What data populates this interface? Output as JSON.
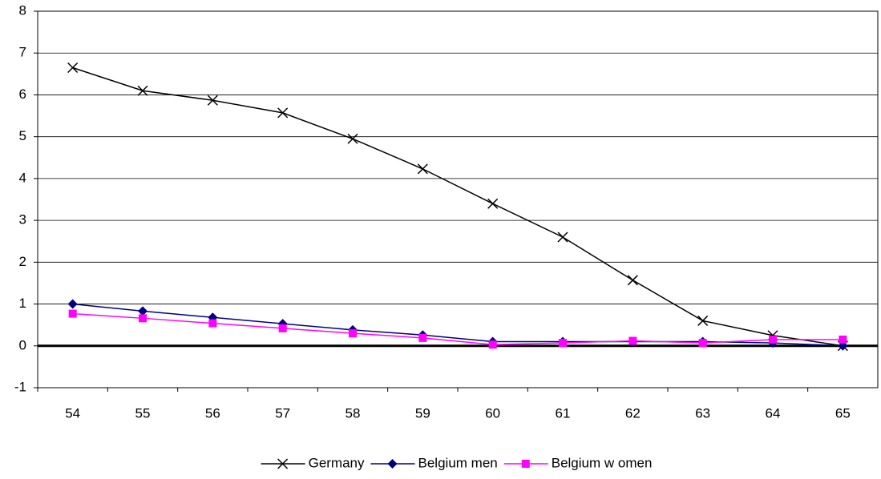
{
  "chart_data": {
    "type": "line",
    "categories": [
      "54",
      "55",
      "56",
      "57",
      "58",
      "59",
      "60",
      "61",
      "62",
      "63",
      "64",
      "65"
    ],
    "series": [
      {
        "name": "Germany",
        "color": "#000000",
        "marker": "x",
        "values": [
          6.65,
          6.1,
          5.87,
          5.57,
          4.95,
          4.23,
          3.4,
          2.6,
          1.57,
          0.6,
          0.25,
          0.0
        ]
      },
      {
        "name": "Belgium men",
        "color": "#000080",
        "marker": "diamond",
        "values": [
          1.0,
          0.83,
          0.68,
          0.53,
          0.38,
          0.26,
          0.1,
          0.1,
          0.1,
          0.1,
          0.07,
          0.0
        ]
      },
      {
        "name": "Belgium w omen",
        "color": "#ff00ff",
        "marker": "square",
        "values": [
          0.77,
          0.66,
          0.54,
          0.42,
          0.3,
          0.19,
          0.03,
          0.07,
          0.12,
          0.07,
          0.15,
          0.15
        ]
      }
    ],
    "ylim": [
      -1,
      8
    ],
    "yticks": [
      -1,
      0,
      1,
      2,
      3,
      4,
      5,
      6,
      7,
      8
    ],
    "grid": true,
    "legend": "bottom"
  }
}
